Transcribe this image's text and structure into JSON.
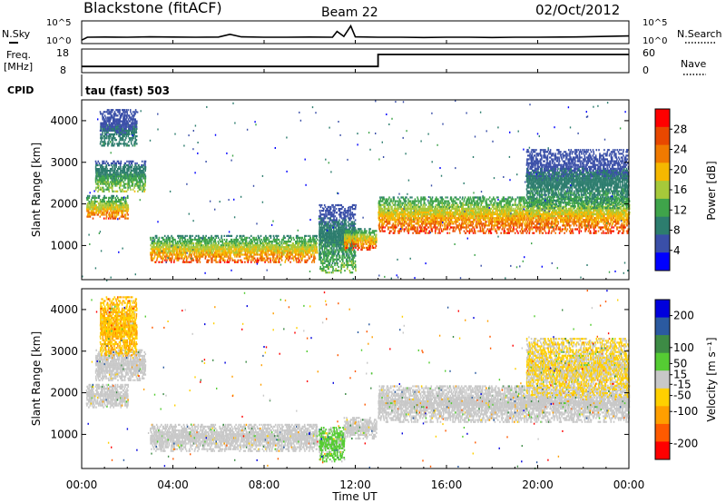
{
  "header": {
    "station": "Blackstone (fitACF)",
    "beam": "Beam 22",
    "date": "02/Oct/2012"
  },
  "noise_panel": {
    "left_label": "N.Sky",
    "left_ticks": [
      "10^5",
      "10^0"
    ],
    "right_label": "N.Search",
    "right_ticks": [
      "10^5",
      "10^0"
    ]
  },
  "freq_panel": {
    "left_label_1": "Freq.",
    "left_label_2": "[MHz]",
    "left_ticks": [
      "18",
      "8"
    ],
    "right_label": "Nave",
    "right_ticks": [
      "60",
      "0"
    ],
    "cpid_label": "CPID",
    "cpid_value": "tau (fast) 503"
  },
  "x_axis": {
    "ticks": [
      "00:00",
      "04:00",
      "08:00",
      "12:00",
      "16:00",
      "20:00",
      "00:00"
    ],
    "label": "Time UT"
  },
  "colors": {
    "power_scale": [
      "#0000ff",
      "#3a4fa8",
      "#2d7d6e",
      "#3fa44a",
      "#a6c93a",
      "#f5b800",
      "#f07a00",
      "#e84800",
      "#ff0000"
    ],
    "velocity_scale": [
      "#ff0000",
      "#ff5a00",
      "#ff9f00",
      "#ffd000",
      "#c8c8c8",
      "#55cc33",
      "#3d8b45",
      "#2b5aa0",
      "#0000dd"
    ]
  },
  "chart_data": [
    {
      "type": "line",
      "title": "N.Sky",
      "x_unit": "hours UT",
      "xlim": [
        0,
        24
      ],
      "ylim_log10": [
        0,
        5
      ],
      "x": [
        0,
        0.25,
        1,
        2,
        3,
        4,
        5,
        6,
        6.5,
        7,
        8,
        9,
        10,
        11,
        11.2,
        11.5,
        11.8,
        12,
        13,
        14,
        15,
        16,
        17,
        18,
        19,
        20,
        21,
        22,
        23,
        24
      ],
      "y_log10": [
        0.6,
        1.3,
        1.35,
        1.3,
        1.4,
        1.35,
        1.3,
        1.35,
        2.0,
        1.4,
        1.3,
        1.3,
        1.35,
        1.3,
        2.7,
        1.5,
        4.0,
        1.4,
        1.3,
        1.3,
        1.25,
        1.3,
        1.3,
        1.25,
        1.3,
        1.3,
        1.35,
        1.4,
        1.5,
        1.6
      ]
    },
    {
      "type": "line",
      "title": "Freq. [MHz]",
      "x_unit": "hours UT",
      "xlim": [
        0,
        24
      ],
      "ylim": [
        8,
        18
      ],
      "x": [
        0,
        13,
        13,
        24
      ],
      "y": [
        10.2,
        10.2,
        16.2,
        16.2
      ]
    },
    {
      "type": "heatmap",
      "title": "Power [dB]",
      "xlabel": "Time UT",
      "ylabel": "Slant Range [km]",
      "xlim": [
        0,
        24
      ],
      "ylim": [
        180,
        4500
      ],
      "yticks": [
        1000,
        2000,
        3000,
        4000
      ],
      "colorbar": {
        "label": "Power [dB]",
        "ticks": [
          4,
          8,
          12,
          16,
          20,
          24,
          28
        ],
        "range": [
          0,
          32
        ]
      },
      "regions": [
        {
          "t_start": 0.2,
          "t_end": 2.0,
          "range_low": 1650,
          "range_high": 2200,
          "peak_db": 26
        },
        {
          "t_start": 0.6,
          "t_end": 2.8,
          "range_low": 2300,
          "range_high": 3050,
          "peak_db": 16
        },
        {
          "t_start": 0.8,
          "t_end": 2.4,
          "range_low": 3400,
          "range_high": 4300,
          "peak_db": 10
        },
        {
          "t_start": 3.0,
          "t_end": 10.3,
          "range_low": 600,
          "range_high": 1250,
          "peak_db": 26
        },
        {
          "t_start": 10.4,
          "t_end": 12.0,
          "range_low": 350,
          "range_high": 2000,
          "peak_db": 14
        },
        {
          "t_start": 11.5,
          "t_end": 12.9,
          "range_low": 900,
          "range_high": 1400,
          "peak_db": 28
        },
        {
          "t_start": 13.0,
          "t_end": 24.0,
          "range_low": 1300,
          "range_high": 2200,
          "peak_db": 28
        },
        {
          "t_start": 19.5,
          "t_end": 24.0,
          "range_low": 1900,
          "range_high": 3300,
          "peak_db": 12
        }
      ]
    },
    {
      "type": "heatmap",
      "title": "Velocity [m s^-1]",
      "xlabel": "Time UT",
      "ylabel": "Slant Range [km]",
      "xlim": [
        0,
        24
      ],
      "ylim": [
        180,
        4500
      ],
      "yticks": [
        1000,
        2000,
        3000,
        4000
      ],
      "colorbar": {
        "label": "Velocity [m s^-1]",
        "ticks": [
          200,
          100,
          50,
          15,
          -15,
          -50,
          -100,
          -200
        ],
        "range": [
          -250,
          250
        ]
      },
      "regions": [
        {
          "t_start": 0.2,
          "t_end": 2.0,
          "range_low": 1650,
          "range_high": 2200,
          "velocity": 0
        },
        {
          "t_start": 0.6,
          "t_end": 2.8,
          "range_low": 2300,
          "range_high": 3050,
          "velocity": 0
        },
        {
          "t_start": 0.8,
          "t_end": 2.4,
          "range_low": 2900,
          "range_high": 4300,
          "velocity": -80
        },
        {
          "t_start": 3.0,
          "t_end": 10.3,
          "range_low": 600,
          "range_high": 1250,
          "velocity": 0
        },
        {
          "t_start": 10.4,
          "t_end": 11.5,
          "range_low": 350,
          "range_high": 1200,
          "velocity": 40
        },
        {
          "t_start": 11.5,
          "t_end": 12.9,
          "range_low": 900,
          "range_high": 1400,
          "velocity": 0
        },
        {
          "t_start": 13.0,
          "t_end": 24.0,
          "range_low": 1300,
          "range_high": 2200,
          "velocity": 0
        },
        {
          "t_start": 19.5,
          "t_end": 24.0,
          "range_low": 1900,
          "range_high": 3300,
          "velocity": -30
        }
      ]
    }
  ]
}
